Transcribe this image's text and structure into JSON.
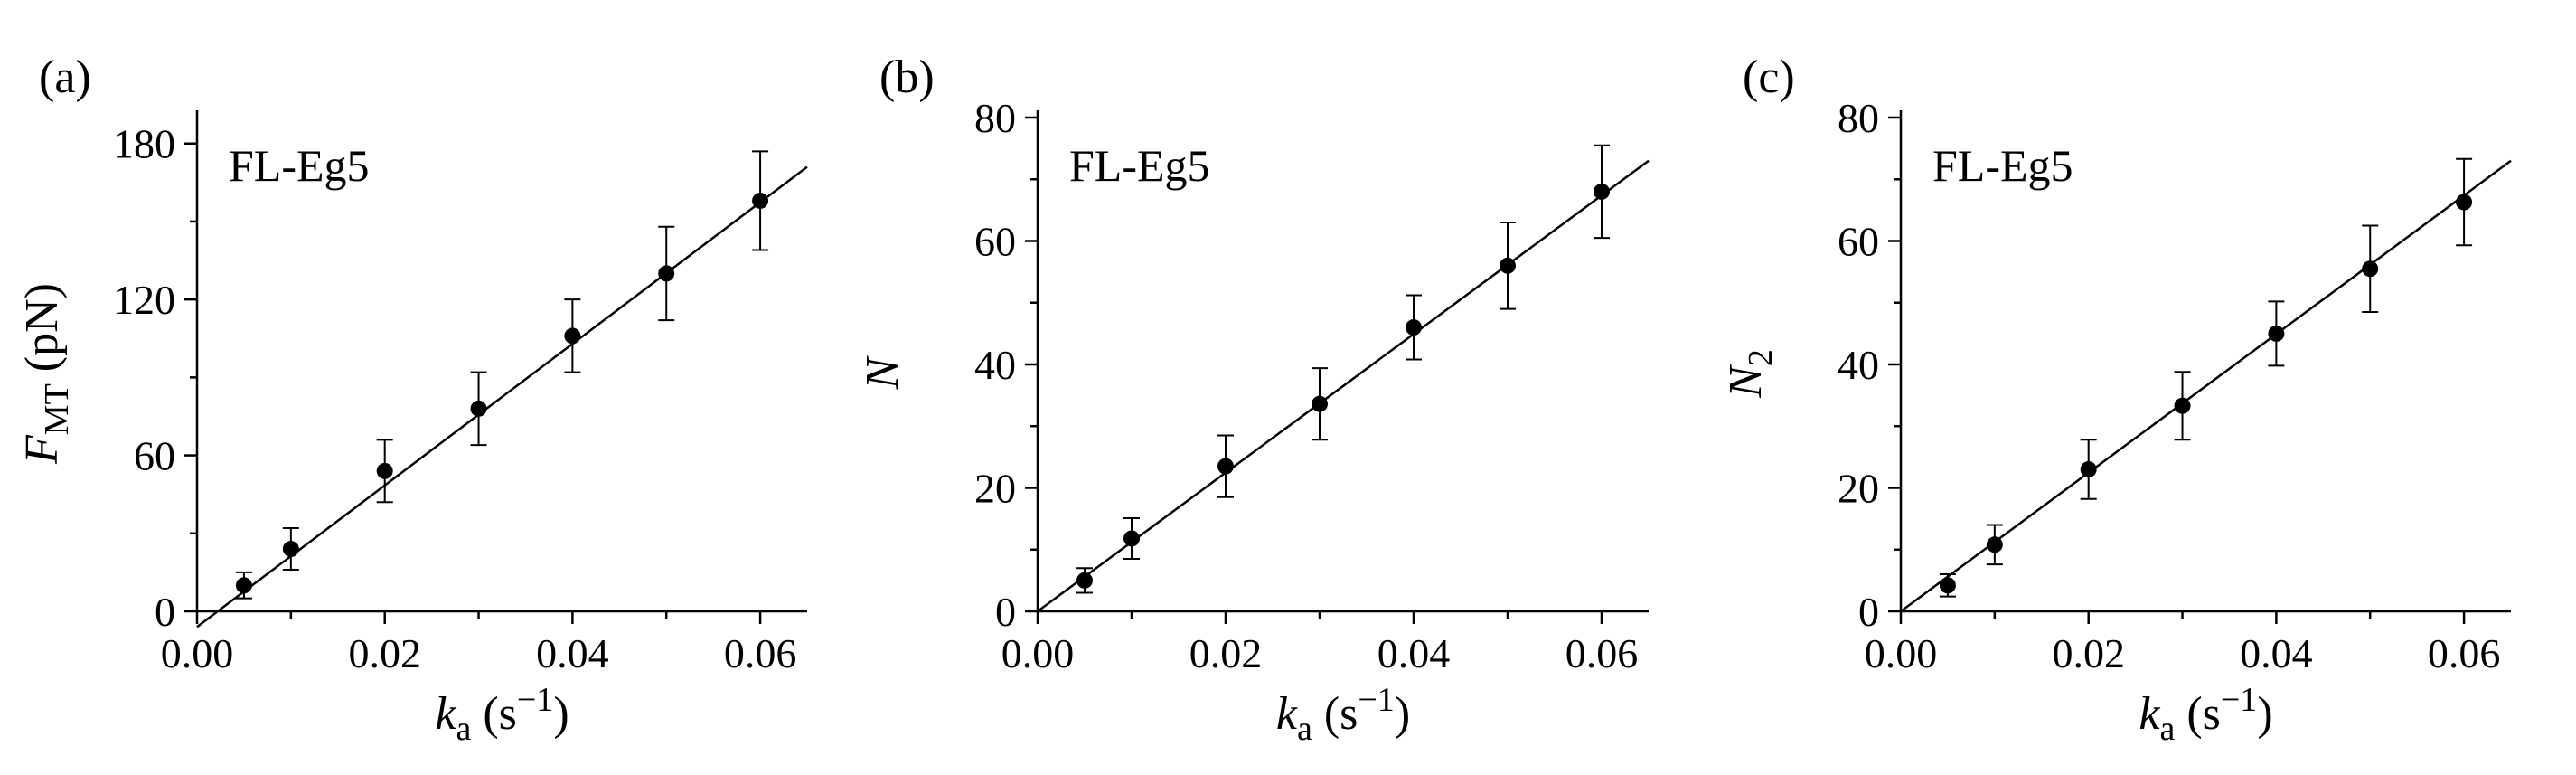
{
  "chart_data": [
    {
      "type": "scatter",
      "panel_label": "(a)",
      "annotation": "FL-Eg5",
      "ylabel": {
        "main": "F",
        "sub": "MT",
        "rest": " (pN)"
      },
      "xlabel": {
        "main": "k",
        "sub": "a",
        "rest": " (s",
        "sup": "−1",
        "close": ")"
      },
      "xlim": [
        0,
        0.065
      ],
      "ylim": [
        0,
        190
      ],
      "xticks": [
        0,
        0.02,
        0.04,
        0.06
      ],
      "xtick_labels": [
        "0.00",
        "0.02",
        "0.04",
        "0.06"
      ],
      "yticks": [
        0,
        60,
        120,
        180
      ],
      "ytick_labels": [
        "0",
        "60",
        "120",
        "180"
      ],
      "series": [
        {
          "x": [
            0.005,
            0.01,
            0.02,
            0.03,
            0.04,
            0.05,
            0.06
          ],
          "y": [
            10,
            24,
            54,
            78,
            106,
            130,
            158
          ],
          "err": [
            5,
            8,
            12,
            14,
            14,
            18,
            19
          ]
        }
      ],
      "fit": {
        "x": [
          0,
          0.065
        ],
        "y": [
          -6,
          171
        ]
      }
    },
    {
      "type": "scatter",
      "panel_label": "(b)",
      "annotation": "FL-Eg5",
      "ylabel": {
        "main": "N",
        "sub": "",
        "rest": ""
      },
      "xlabel": {
        "main": "k",
        "sub": "a",
        "rest": " (s",
        "sup": "−1",
        "close": ")"
      },
      "xlim": [
        0,
        0.065
      ],
      "ylim": [
        0,
        80
      ],
      "xticks": [
        0,
        0.02,
        0.04,
        0.06
      ],
      "xtick_labels": [
        "0.00",
        "0.02",
        "0.04",
        "0.06"
      ],
      "yticks": [
        0,
        20,
        40,
        60,
        80
      ],
      "ytick_labels": [
        "0",
        "20",
        "40",
        "60",
        "80"
      ],
      "series": [
        {
          "x": [
            0.005,
            0.01,
            0.02,
            0.03,
            0.04,
            0.05,
            0.06
          ],
          "y": [
            5,
            11.8,
            23.5,
            33.6,
            46,
            56,
            68
          ],
          "err": [
            2,
            3.3,
            5,
            5.8,
            5.2,
            7,
            7.5
          ]
        }
      ],
      "fit": {
        "x": [
          0,
          0.065
        ],
        "y": [
          0,
          73
        ]
      }
    },
    {
      "type": "scatter",
      "panel_label": "(c)",
      "annotation": "FL-Eg5",
      "ylabel": {
        "main": "N",
        "sub": "2",
        "rest": ""
      },
      "xlabel": {
        "main": "k",
        "sub": "a",
        "rest": " (s",
        "sup": "−1",
        "close": ")"
      },
      "xlim": [
        0,
        0.065
      ],
      "ylim": [
        0,
        80
      ],
      "xticks": [
        0,
        0.02,
        0.04,
        0.06
      ],
      "xtick_labels": [
        "0.00",
        "0.02",
        "0.04",
        "0.06"
      ],
      "yticks": [
        0,
        20,
        40,
        60,
        80
      ],
      "ytick_labels": [
        "0",
        "20",
        "40",
        "60",
        "80"
      ],
      "series": [
        {
          "x": [
            0.005,
            0.01,
            0.02,
            0.03,
            0.04,
            0.05,
            0.06
          ],
          "y": [
            4.2,
            10.8,
            23,
            33.3,
            45,
            55.5,
            66.3
          ],
          "err": [
            1.8,
            3.2,
            4.8,
            5.5,
            5.2,
            7,
            7
          ]
        }
      ],
      "fit": {
        "x": [
          0,
          0.065
        ],
        "y": [
          0,
          73
        ]
      }
    }
  ]
}
